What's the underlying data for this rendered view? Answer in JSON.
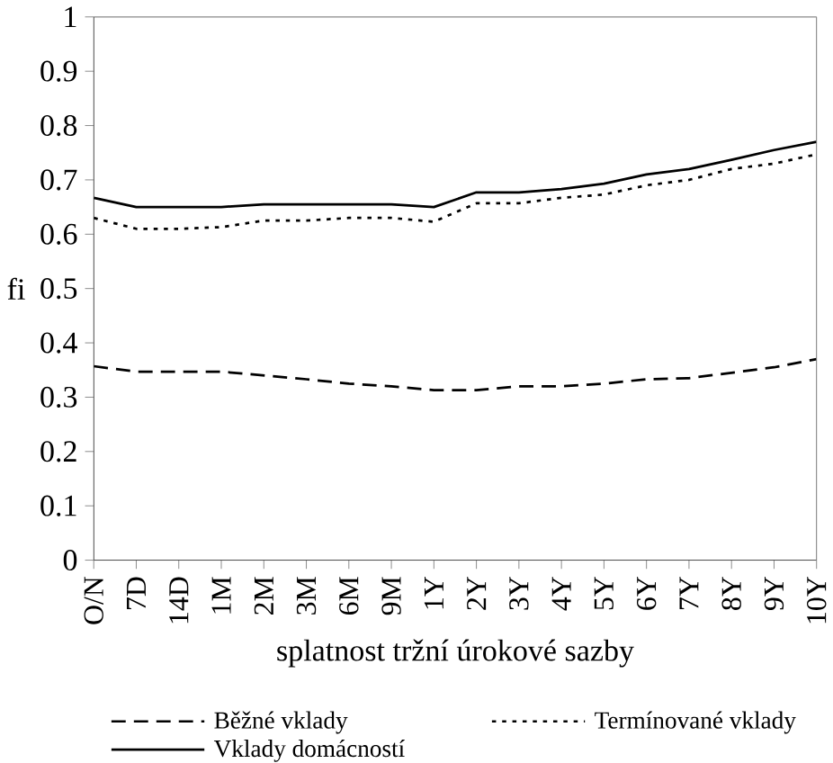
{
  "chart_data": {
    "type": "line",
    "xlabel": "splatnost tržní úrokové sazby",
    "ylabel": "fi",
    "categories": [
      "O/N",
      "7D",
      "14D",
      "1M",
      "2M",
      "3M",
      "6M",
      "9M",
      "1Y",
      "2Y",
      "3Y",
      "4Y",
      "5Y",
      "6Y",
      "7Y",
      "8Y",
      "9Y",
      "10Y"
    ],
    "ylim": [
      0,
      1
    ],
    "yticks": [
      0,
      0.1,
      0.2,
      0.3,
      0.4,
      0.5,
      0.6,
      0.7,
      0.8,
      0.9,
      1
    ],
    "grid": false,
    "legend": "bottom",
    "marker": "none",
    "series": [
      {
        "name": "Běžné vklady",
        "color": "#000000",
        "line_style": "dashed",
        "values": [
          0.357,
          0.347,
          0.347,
          0.347,
          0.34,
          0.333,
          0.325,
          0.32,
          0.313,
          0.313,
          0.32,
          0.32,
          0.325,
          0.333,
          0.335,
          0.345,
          0.355,
          0.37
        ]
      },
      {
        "name": "Termínované vklady",
        "color": "#000000",
        "line_style": "dotted",
        "values": [
          0.63,
          0.61,
          0.61,
          0.613,
          0.625,
          0.625,
          0.63,
          0.63,
          0.623,
          0.657,
          0.657,
          0.667,
          0.673,
          0.69,
          0.7,
          0.72,
          0.73,
          0.747
        ]
      },
      {
        "name": "Vklady domácností",
        "color": "#000000",
        "line_style": "solid",
        "values": [
          0.667,
          0.65,
          0.65,
          0.65,
          0.655,
          0.655,
          0.655,
          0.655,
          0.65,
          0.677,
          0.677,
          0.683,
          0.693,
          0.71,
          0.72,
          0.737,
          0.755,
          0.77
        ]
      }
    ]
  }
}
